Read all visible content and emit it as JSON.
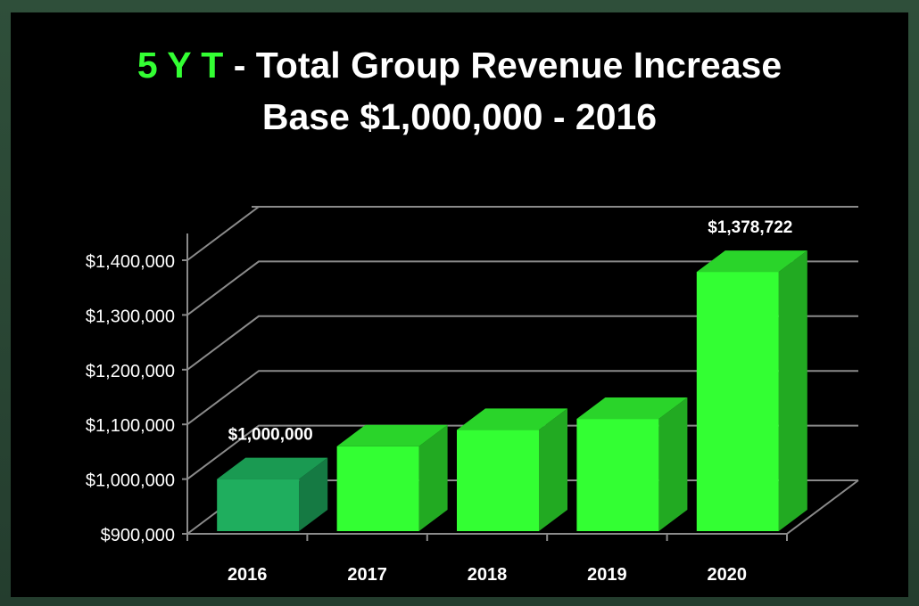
{
  "title": {
    "accent": "5 Y T",
    "line1_rest": " - Total Group Revenue Increase",
    "line2": "Base $1,000,000 - 2016"
  },
  "colors": {
    "bar": "#33ff33",
    "bar_side": "#22aa22",
    "bar_top": "#2ad42a",
    "bar_highlight": "#1fae5e",
    "bar_highlight_side": "#157a43",
    "bar_highlight_top": "#1a9a52",
    "accent": "#33ff33",
    "grid": "#8a8a8a"
  },
  "chart_data": {
    "type": "bar",
    "title": "5 Y T - Total Group Revenue Increase Base $1,000,000 - 2016",
    "categories": [
      "2016",
      "2017",
      "2018",
      "2019",
      "2020"
    ],
    "values": [
      1000000,
      1060000,
      1090000,
      1110000,
      1378722
    ],
    "ylim": [
      900000,
      1400000
    ],
    "yticks": [
      900000,
      1000000,
      1100000,
      1200000,
      1300000,
      1400000
    ],
    "ytick_labels": [
      "$900,000",
      "$1,000,000",
      "$1,100,000",
      "$1,200,000",
      "$1,300,000",
      "$1,400,000"
    ],
    "data_labels": [
      "$1,000,000",
      "",
      "",
      "",
      "$1,378,722"
    ],
    "highlight_index": 0,
    "xlabel": "",
    "ylabel": "",
    "grid": true,
    "style": "3d-column"
  }
}
